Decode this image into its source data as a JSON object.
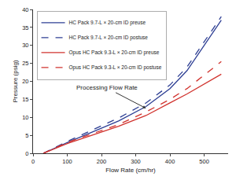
{
  "chart_data": {
    "type": "line",
    "x_label": "Flow Rate (cm/hr)",
    "y_label": "Pressure (psig)",
    "xlim": [
      0,
      570
    ],
    "ylim": [
      0,
      40
    ],
    "xticks": [
      0,
      100,
      200,
      300,
      400,
      500
    ],
    "yticks": [
      0,
      5,
      10,
      15,
      20,
      25,
      30,
      35,
      40
    ],
    "grid": false,
    "legend": "upper left",
    "x": [
      30,
      100,
      250,
      330,
      400,
      450,
      550
    ],
    "series": [
      {
        "name": "HC Pack 9.7-L × 20-cm ID preuse",
        "color": "#2e3f94",
        "line_style": "solid",
        "values": [
          0,
          3,
          9,
          13,
          18,
          23,
          37
        ]
      },
      {
        "name": "HC Pack 9.7-L × 20-cm ID postuse",
        "color": "#2e3f94",
        "line_style": "dashed",
        "values": [
          0,
          3.3,
          9.8,
          14,
          19,
          24,
          38
        ]
      },
      {
        "name": "Opus HC Pack 9.3-L × 20-cm ID preuse",
        "color": "#d1332e",
        "line_style": "solid",
        "values": [
          0,
          2.7,
          7.5,
          10.5,
          14,
          16.5,
          22
        ]
      },
      {
        "name": "Opus HC Pack 9.3-L × 20-cm ID postuse",
        "color": "#d1332e",
        "line_style": "dashed",
        "values": [
          0,
          3,
          8,
          11.5,
          15,
          18,
          25.5
        ]
      }
    ],
    "annotations": [
      {
        "text": "Processing Flow Rate",
        "x": 330,
        "y": 12.5
      }
    ]
  }
}
